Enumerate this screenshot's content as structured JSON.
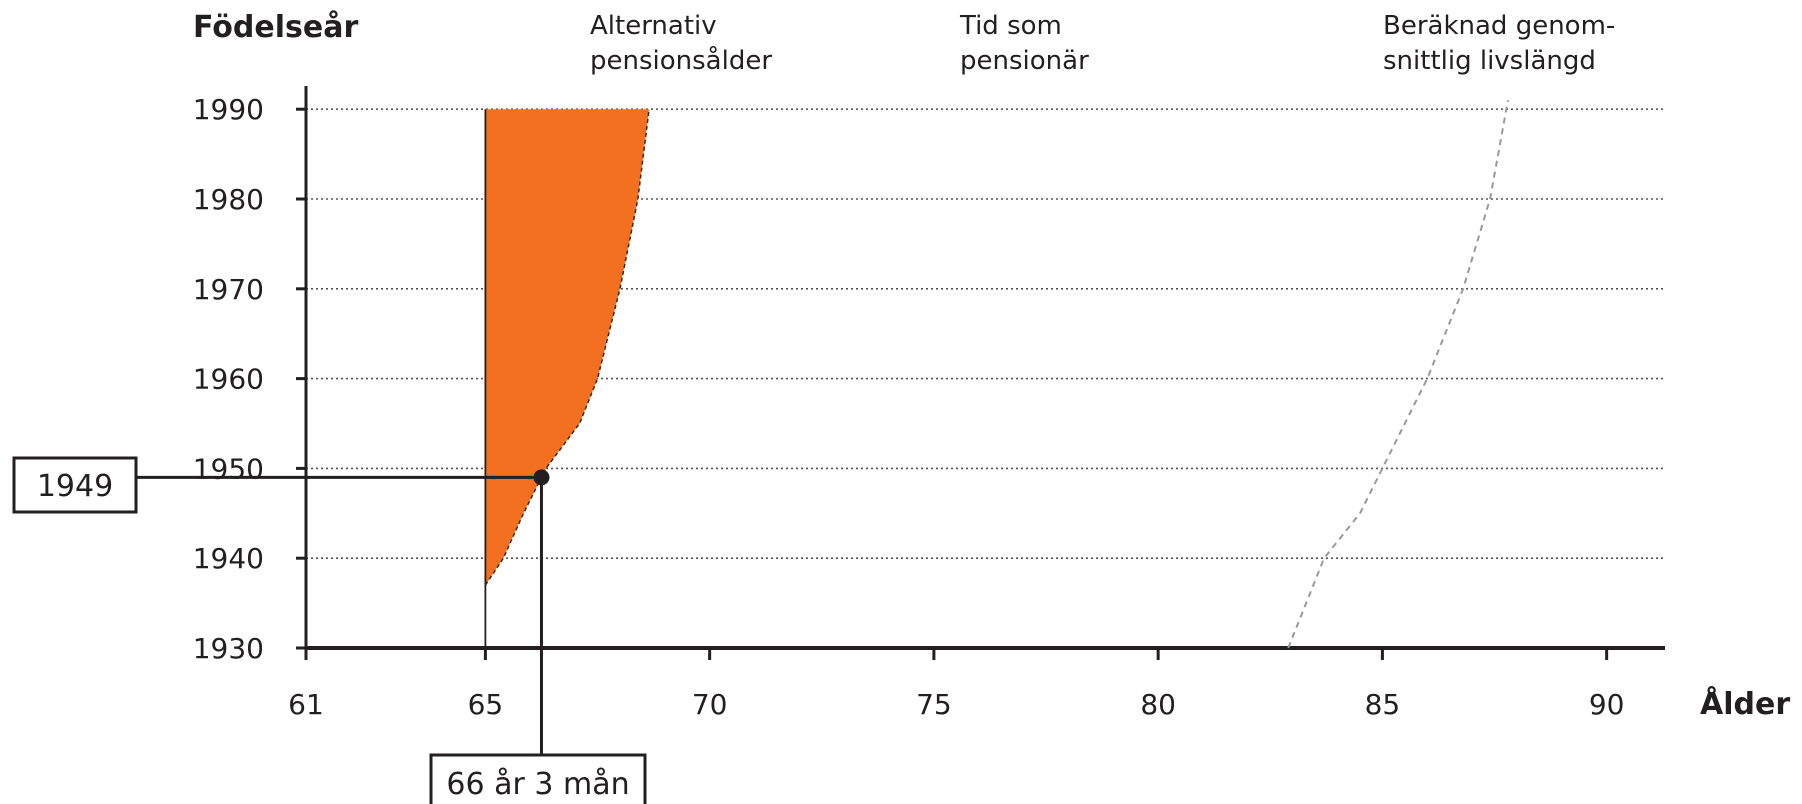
{
  "chart_data": {
    "type": "area",
    "xlabel": "Ålder",
    "ylabel": "Födelseår",
    "xlim": [
      61,
      91
    ],
    "ylim": [
      1930,
      1991
    ],
    "x_ticks": [
      61,
      65,
      70,
      75,
      80,
      85,
      90
    ],
    "y_ticks": [
      1930,
      1940,
      1950,
      1960,
      1970,
      1980,
      1990
    ],
    "grid": "horizontal dotted",
    "headers": [
      [
        "Alternativ",
        "pensionsålder"
      ],
      [
        "Tid som",
        "pensionär"
      ],
      [
        "Beräknad genom-",
        "snittlig livslängd"
      ]
    ],
    "series": [
      {
        "name": "Alternativ pensionsålder",
        "color": "#f37021",
        "lower_x": 65,
        "points": [
          {
            "year": 1937,
            "age": 65.0
          },
          {
            "year": 1940,
            "age": 65.4
          },
          {
            "year": 1945,
            "age": 65.85
          },
          {
            "year": 1950,
            "age": 66.35
          },
          {
            "year": 1955,
            "age": 67.1
          },
          {
            "year": 1960,
            "age": 67.5
          },
          {
            "year": 1970,
            "age": 68.0
          },
          {
            "year": 1980,
            "age": 68.4
          },
          {
            "year": 1990,
            "age": 68.65
          }
        ]
      },
      {
        "name": "Beräknad genomsnittlig livslängd",
        "color": "#999999",
        "style": "dashed",
        "points": [
          {
            "year": 1930,
            "age": 82.9
          },
          {
            "year": 1940,
            "age": 83.7
          },
          {
            "year": 1945,
            "age": 84.5
          },
          {
            "year": 1950,
            "age": 85.0
          },
          {
            "year": 1960,
            "age": 86.0
          },
          {
            "year": 1970,
            "age": 86.8
          },
          {
            "year": 1980,
            "age": 87.4
          },
          {
            "year": 1991,
            "age": 87.8
          }
        ]
      }
    ],
    "highlight": {
      "year": 1949,
      "age": 66.25,
      "year_label": "1949",
      "age_label": "66 år 3 mån"
    }
  }
}
